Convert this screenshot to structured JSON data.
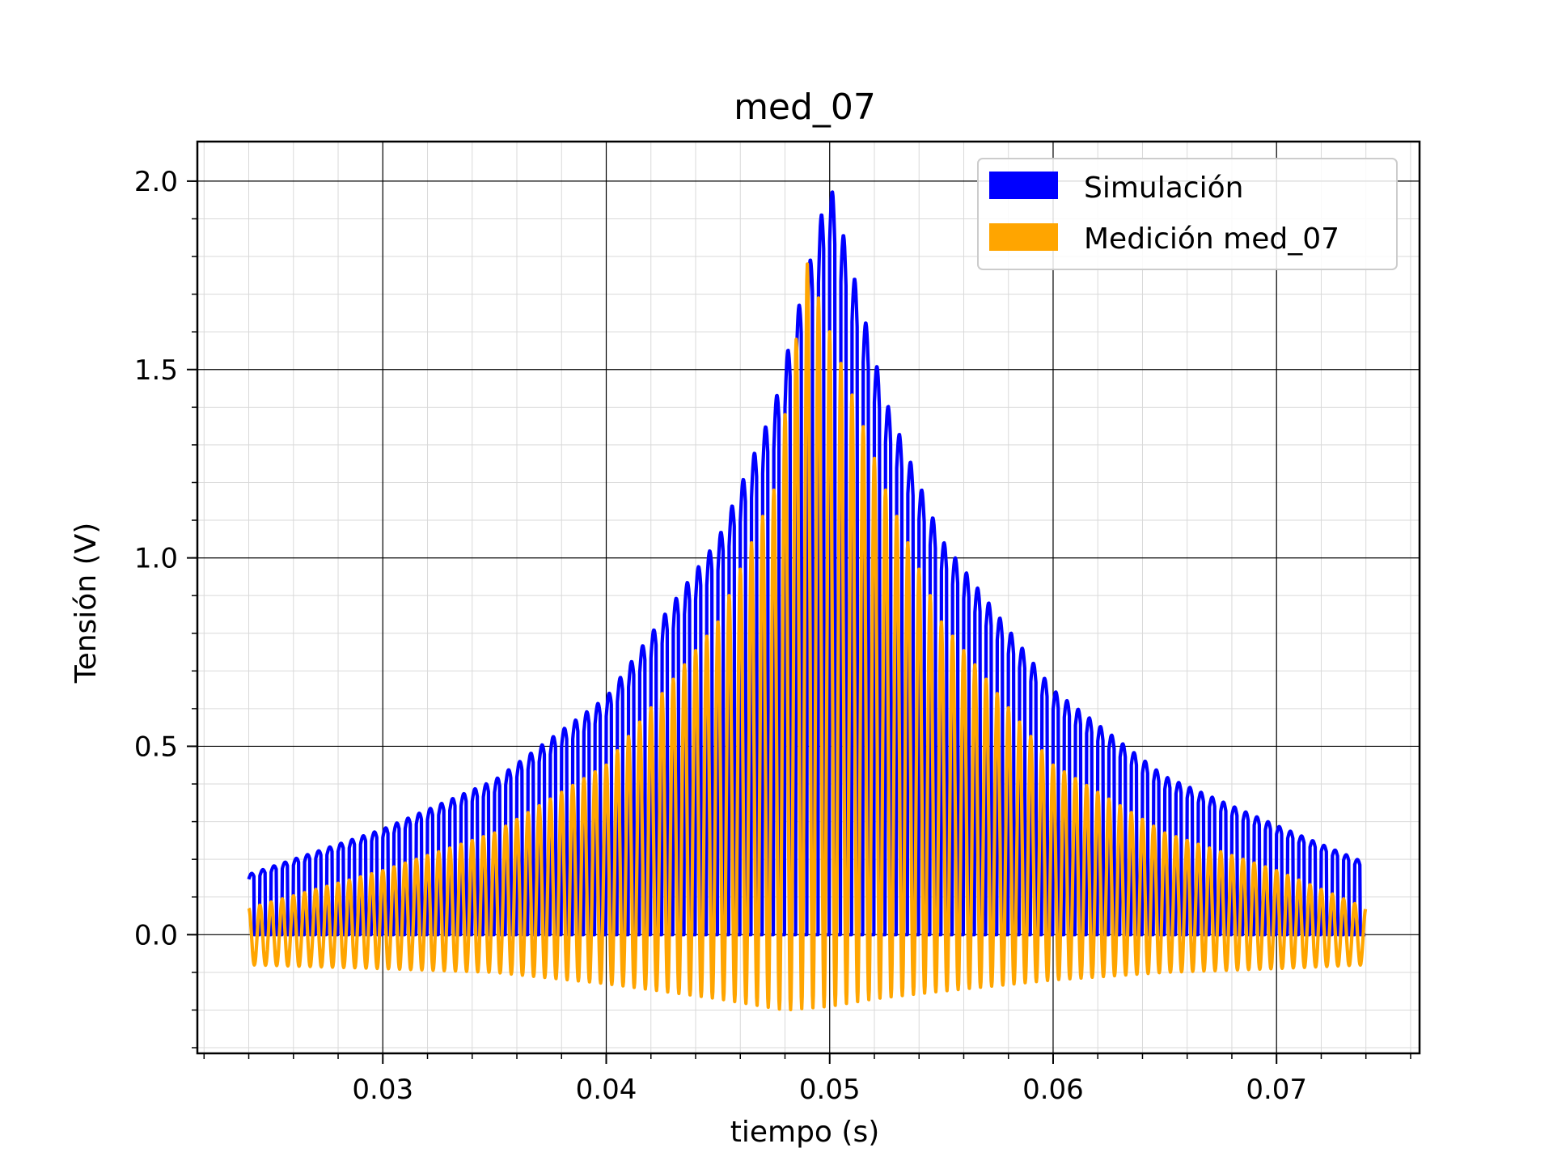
{
  "chart_data": {
    "type": "line",
    "title": "med_07",
    "xlabel": "tiempo (s)",
    "ylabel": "Tensión (V)",
    "xlim": [
      0.0217,
      0.0764
    ],
    "ylim": [
      -0.315,
      2.105
    ],
    "xticks": [
      0.03,
      0.04,
      0.05,
      0.06,
      0.07
    ],
    "xtick_labels": [
      "0.03",
      "0.04",
      "0.05",
      "0.06",
      "0.07"
    ],
    "yticks": [
      0.0,
      0.5,
      1.0,
      1.5,
      2.0
    ],
    "ytick_labels": [
      "0.0",
      "0.5",
      "1.0",
      "1.5",
      "2.0"
    ],
    "grid": true,
    "minor_grid": true,
    "legend_position": "top-right",
    "pulse_period": 0.0005,
    "series": [
      {
        "name": "Simulación",
        "color": "#0000ff",
        "x_range": [
          0.024,
          0.074
        ],
        "peak_envelope": [
          [
            0.024,
            0.16
          ],
          [
            0.03,
            0.28
          ],
          [
            0.035,
            0.41
          ],
          [
            0.04,
            0.63
          ],
          [
            0.045,
            1.05
          ],
          [
            0.0475,
            1.4
          ],
          [
            0.05,
            2.0
          ],
          [
            0.0525,
            1.42
          ],
          [
            0.055,
            1.05
          ],
          [
            0.06,
            0.65
          ],
          [
            0.065,
            0.42
          ],
          [
            0.07,
            0.29
          ],
          [
            0.074,
            0.19
          ]
        ],
        "min_envelope": [
          [
            0.024,
            0.0
          ],
          [
            0.074,
            0.0
          ]
        ]
      },
      {
        "name": "Medición med_07",
        "color": "#ffa500",
        "x_range": [
          0.024,
          0.074
        ],
        "peak_envelope": [
          [
            0.024,
            0.07
          ],
          [
            0.03,
            0.17
          ],
          [
            0.035,
            0.27
          ],
          [
            0.04,
            0.45
          ],
          [
            0.045,
            0.83
          ],
          [
            0.0475,
            1.18
          ],
          [
            0.049,
            1.78
          ],
          [
            0.05,
            1.6
          ],
          [
            0.0525,
            1.18
          ],
          [
            0.055,
            0.83
          ],
          [
            0.06,
            0.45
          ],
          [
            0.065,
            0.27
          ],
          [
            0.07,
            0.17
          ],
          [
            0.074,
            0.07
          ]
        ],
        "min_envelope": [
          [
            0.024,
            -0.08
          ],
          [
            0.03,
            -0.09
          ],
          [
            0.035,
            -0.1
          ],
          [
            0.04,
            -0.13
          ],
          [
            0.045,
            -0.17
          ],
          [
            0.048,
            -0.2
          ],
          [
            0.05,
            -0.19
          ],
          [
            0.052,
            -0.17
          ],
          [
            0.055,
            -0.15
          ],
          [
            0.06,
            -0.12
          ],
          [
            0.065,
            -0.1
          ],
          [
            0.07,
            -0.09
          ],
          [
            0.074,
            -0.08
          ]
        ]
      }
    ]
  }
}
